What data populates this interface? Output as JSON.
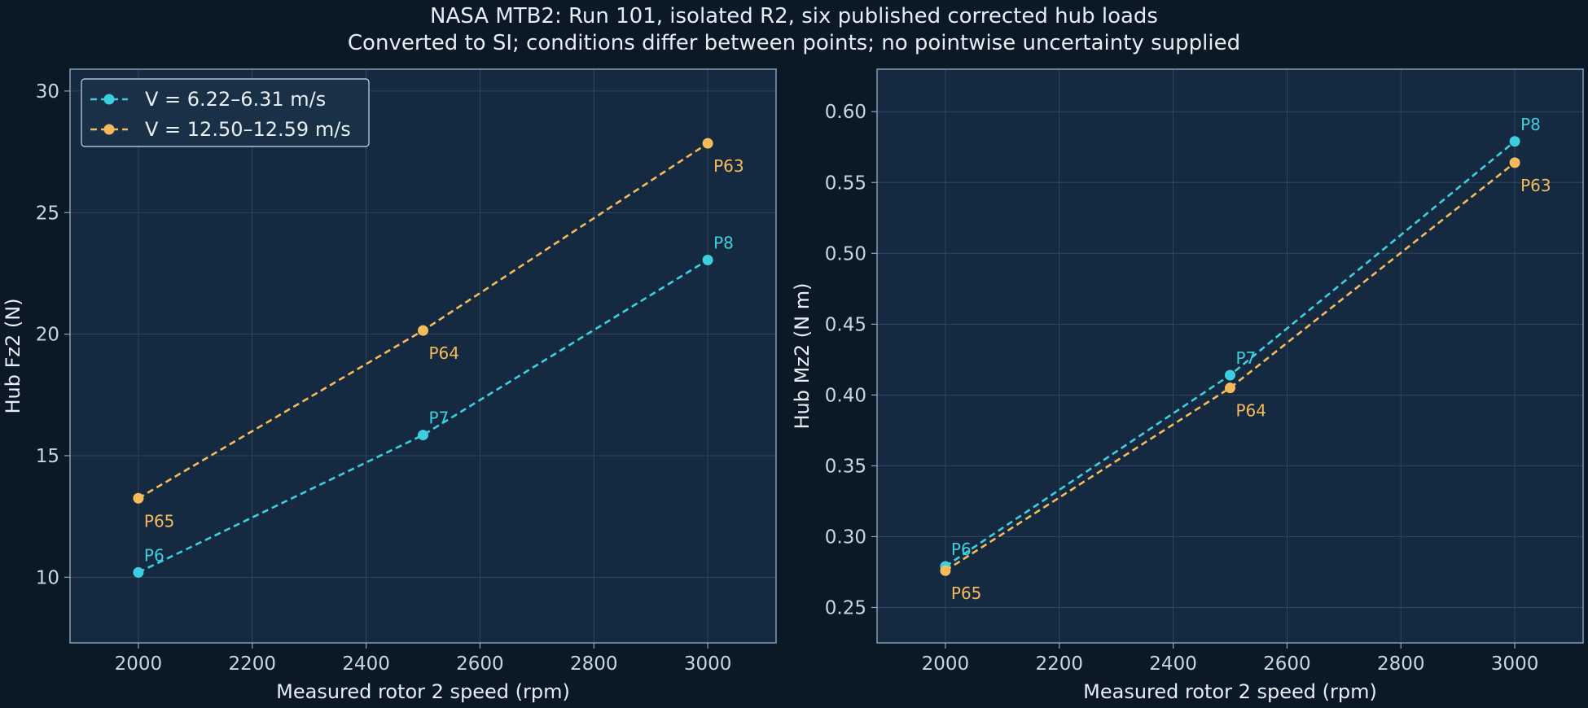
{
  "figure": {
    "title_line1": "NASA MTB2: Run 101, isolated R2, six published corrected hub loads",
    "title_line2": "Converted to SI; conditions differ between points; no pointwise uncertainty supplied"
  },
  "colors": {
    "background": "#0b1825",
    "panel": "#152a40",
    "spine": "#8aa7c2",
    "grid": "#3a5168",
    "text": "#e6edf3",
    "tick_text": "#c9d5e0",
    "series_low": "#3ccfe0",
    "series_high": "#f5bb5a"
  },
  "chart_data": [
    {
      "type": "line",
      "xlabel": "Measured rotor 2 speed (rpm)",
      "ylabel": "Hub Fz2 (N)",
      "xlim": [
        1880,
        3120
      ],
      "ylim": [
        7.3,
        30.9
      ],
      "xticks": [
        2000,
        2200,
        2400,
        2600,
        2800,
        3000
      ],
      "yticks": [
        10,
        15,
        20,
        25,
        30
      ],
      "grid": true,
      "legend_position": "top-left",
      "series": [
        {
          "name": "V = 6.22–6.31 m/s",
          "color_key": "series_low",
          "label_side": "above",
          "points": [
            {
              "x": 2000,
              "y": 10.2,
              "label": "P6"
            },
            {
              "x": 2500,
              "y": 15.85,
              "label": "P7"
            },
            {
              "x": 3000,
              "y": 23.05,
              "label": "P8"
            }
          ]
        },
        {
          "name": "V = 12.50–12.59 m/s",
          "color_key": "series_high",
          "label_side": "below",
          "points": [
            {
              "x": 2000,
              "y": 13.25,
              "label": "P65"
            },
            {
              "x": 2500,
              "y": 20.15,
              "label": "P64"
            },
            {
              "x": 3000,
              "y": 27.85,
              "label": "P63"
            }
          ]
        }
      ]
    },
    {
      "type": "line",
      "xlabel": "Measured rotor 2 speed (rpm)",
      "ylabel": "Hub Mz2 (N m)",
      "xlim": [
        1880,
        3120
      ],
      "ylim": [
        0.225,
        0.63
      ],
      "xticks": [
        2000,
        2200,
        2400,
        2600,
        2800,
        3000
      ],
      "yticks": [
        0.25,
        0.3,
        0.35,
        0.4,
        0.45,
        0.5,
        0.55,
        0.6
      ],
      "grid": true,
      "legend_position": "none",
      "series": [
        {
          "name": "V = 6.22–6.31 m/s",
          "color_key": "series_low",
          "label_side": "above",
          "points": [
            {
              "x": 2000,
              "y": 0.279,
              "label": "P6"
            },
            {
              "x": 2500,
              "y": 0.414,
              "label": "P7"
            },
            {
              "x": 3000,
              "y": 0.579,
              "label": "P8"
            }
          ]
        },
        {
          "name": "V = 12.50–12.59 m/s",
          "color_key": "series_high",
          "label_side": "below",
          "points": [
            {
              "x": 2000,
              "y": 0.276,
              "label": "P65"
            },
            {
              "x": 2500,
              "y": 0.405,
              "label": "P64"
            },
            {
              "x": 3000,
              "y": 0.564,
              "label": "P63"
            }
          ]
        }
      ]
    }
  ]
}
